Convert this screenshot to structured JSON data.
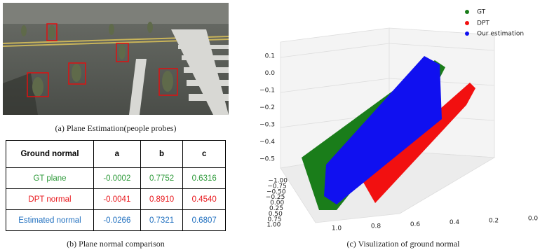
{
  "panel_a": {
    "caption": "(a) Plane Estimation(people probes)"
  },
  "panel_b": {
    "caption": "(b) Plane normal comparison",
    "table": {
      "header": [
        "Ground normal",
        "a",
        "b",
        "c"
      ],
      "rows": [
        [
          "GT plane",
          "-0.0002",
          "0.7752",
          "0.6316"
        ],
        [
          "DPT normal",
          "-0.0041",
          "0.8910",
          "0.4540"
        ],
        [
          "Estimated normal",
          "-0.0266",
          "0.7321",
          "0.6807"
        ]
      ]
    }
  },
  "panel_c": {
    "caption": "(c) Visulization of ground normal",
    "legend": [
      "GT",
      "DPT",
      "Our estimation"
    ],
    "z_ticks": [
      "0.1",
      "0.0",
      "−0.1",
      "−0.2",
      "−0.3",
      "−0.4",
      "−0.5"
    ],
    "y_ticks": [
      "−1.00",
      "−0.75",
      "−0.50",
      "−0.25",
      "0.00",
      "0.25",
      "0.50",
      "0.75",
      "1.00"
    ],
    "x_ticks": [
      "1.0",
      "0.8",
      "0.6",
      "0.4",
      "0.2",
      "0.0"
    ]
  }
}
